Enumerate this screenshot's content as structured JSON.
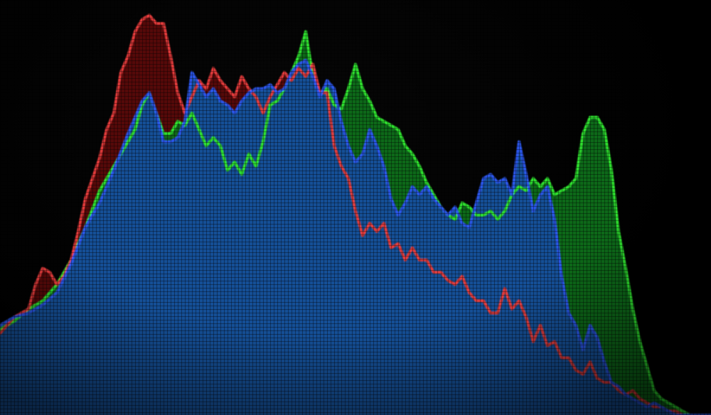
{
  "chart_data": {
    "type": "area",
    "title": "",
    "xlabel": "",
    "ylabel": "",
    "grid": false,
    "legend": "none",
    "xlim": [
      0,
      100
    ],
    "ylim": [
      0,
      100
    ],
    "series": [
      {
        "color": "#1e5fb0",
        "line_color": "#2a55e8",
        "area_color": "#154f96",
        "x": [
          0,
          2,
          4,
          6,
          8,
          10,
          12,
          14,
          16,
          18,
          19,
          20,
          21,
          22,
          23,
          24,
          25,
          26,
          27,
          28,
          29,
          30,
          31,
          32,
          33,
          34,
          35,
          36,
          37,
          38,
          39,
          40,
          41,
          42,
          43,
          44,
          45,
          46,
          47,
          48,
          49,
          50,
          51,
          52,
          53,
          54,
          55,
          56,
          57,
          58,
          59,
          60,
          61,
          62,
          63,
          64,
          65,
          66,
          67,
          68,
          69,
          70,
          71,
          72,
          73,
          74,
          75,
          76,
          77,
          78,
          79,
          80,
          81,
          82,
          83,
          84,
          85,
          86,
          87,
          88,
          89,
          90,
          91,
          92,
          93,
          94,
          95,
          96,
          97,
          98,
          100
        ],
        "values": [
          22,
          24,
          25,
          27,
          30,
          37,
          46,
          52,
          60,
          69,
          73,
          77,
          79,
          74,
          67,
          67,
          68,
          72,
          84,
          81,
          78,
          80,
          77,
          76,
          74,
          77,
          79,
          80,
          80,
          81,
          79,
          80,
          84,
          86,
          87,
          83,
          78,
          82,
          80,
          72,
          66,
          62,
          64,
          70,
          66,
          61,
          53,
          49,
          52,
          56,
          54,
          56,
          53,
          51,
          49,
          51,
          47,
          46,
          52,
          58,
          59,
          57,
          58,
          54,
          67,
          59,
          50,
          54,
          56,
          48,
          34,
          25,
          22,
          16,
          22,
          19,
          13,
          8,
          7,
          5,
          4,
          3,
          2,
          3,
          2,
          1,
          0,
          0,
          0,
          0,
          0
        ]
      },
      {
        "color": "#e02020",
        "line_color": "#e23a3a",
        "area_color": "#5a0a0a",
        "x": [
          0,
          2,
          4,
          5,
          6,
          7,
          8,
          9,
          10,
          11,
          12,
          13,
          14,
          15,
          16,
          17,
          18,
          19,
          20,
          21,
          22,
          23,
          24,
          25,
          26,
          27,
          28,
          29,
          30,
          31,
          32,
          33,
          34,
          35,
          36,
          37,
          38,
          39,
          40,
          41,
          42,
          43,
          44,
          45,
          46,
          47,
          48,
          49,
          50,
          51,
          52,
          53,
          54,
          55,
          56,
          57,
          58,
          59,
          60,
          61,
          62,
          63,
          64,
          65,
          66,
          67,
          68,
          69,
          70,
          71,
          72,
          73,
          74,
          75,
          76,
          77,
          78,
          79,
          80,
          81,
          82,
          83,
          84,
          85,
          86,
          87,
          88,
          89,
          90,
          91,
          92,
          93,
          94,
          95,
          96,
          97,
          98,
          100
        ],
        "values": [
          20,
          24,
          26,
          32,
          36,
          35,
          32,
          34,
          38,
          45,
          53,
          58,
          63,
          70,
          74,
          84,
          88,
          94,
          97,
          98,
          96,
          96,
          88,
          79,
          74,
          78,
          82,
          80,
          85,
          82,
          80,
          78,
          83,
          80,
          78,
          74,
          78,
          81,
          84,
          82,
          85,
          83,
          86,
          79,
          79,
          66,
          61,
          58,
          50,
          44,
          47,
          45,
          47,
          41,
          42,
          38,
          41,
          38,
          38,
          35,
          35,
          33,
          32,
          34,
          30,
          28,
          28,
          25,
          25,
          31,
          26,
          28,
          24,
          18,
          22,
          17,
          18,
          14,
          14,
          11,
          10,
          13,
          9,
          8,
          8,
          6,
          5,
          6,
          4,
          3,
          2,
          2,
          1,
          1,
          0,
          0,
          0,
          0
        ]
      },
      {
        "color": "#20c020",
        "line_color": "#2ee02e",
        "area_color": "#0e6e1a",
        "x": [
          0,
          2,
          4,
          6,
          8,
          10,
          12,
          14,
          16,
          18,
          19,
          20,
          21,
          22,
          23,
          24,
          25,
          26,
          27,
          28,
          29,
          30,
          31,
          32,
          33,
          34,
          35,
          36,
          37,
          38,
          39,
          40,
          41,
          42,
          43,
          44,
          45,
          46,
          47,
          48,
          49,
          50,
          51,
          52,
          53,
          54,
          55,
          56,
          57,
          58,
          59,
          60,
          61,
          62,
          63,
          64,
          65,
          66,
          67,
          68,
          69,
          70,
          71,
          72,
          73,
          74,
          75,
          76,
          77,
          78,
          79,
          80,
          81,
          82,
          83,
          84,
          85,
          86,
          87,
          88,
          89,
          90,
          91,
          92,
          93,
          94,
          95,
          96,
          97,
          98,
          100
        ],
        "values": [
          21,
          23,
          26,
          28,
          32,
          38,
          46,
          55,
          61,
          67,
          70,
          76,
          79,
          74,
          69,
          69,
          72,
          71,
          74,
          70,
          66,
          68,
          66,
          60,
          62,
          59,
          64,
          61,
          67,
          76,
          77,
          80,
          84,
          88,
          94,
          83,
          79,
          80,
          76,
          75,
          80,
          86,
          80,
          77,
          73,
          72,
          71,
          70,
          66,
          64,
          61,
          57,
          54,
          51,
          49,
          48,
          52,
          51,
          49,
          49,
          50,
          48,
          50,
          54,
          56,
          55,
          58,
          56,
          58,
          54,
          55,
          56,
          58,
          69,
          73,
          73,
          70,
          60,
          45,
          36,
          26,
          18,
          12,
          6,
          4,
          3,
          2,
          1,
          0,
          0,
          0
        ]
      }
    ]
  }
}
